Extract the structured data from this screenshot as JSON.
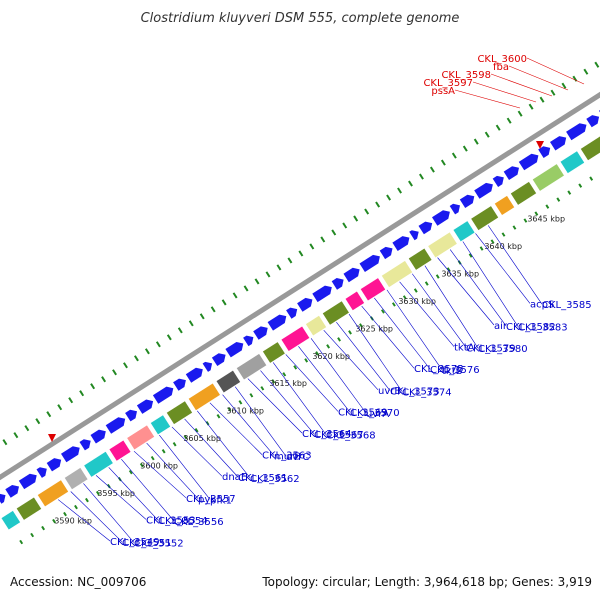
{
  "title": "Clostridium kluyveri DSM 555, complete genome",
  "footer": {
    "accession": "Accession: NC_009706",
    "summary": "Topology: circular; Length: 3,964,618 bp; Genes: 3,919"
  },
  "colors": {
    "label_blue": "#0000cc",
    "label_red": "#dd0000",
    "backbone": "#999999",
    "arrow_blue": "#1a1aee",
    "dot_green": "#228822",
    "magenta": "#ff1493",
    "cyan": "#20c8c8",
    "yellow": "#e8e89a",
    "olive": "#6b8e23",
    "orange": "#f0a020"
  },
  "ticks": [
    {
      "label": "3590 kbp"
    },
    {
      "label": "3595 kbp"
    },
    {
      "label": "3600 kbp"
    },
    {
      "label": "3605 kbp"
    },
    {
      "label": "3610 kbp"
    },
    {
      "label": "3615 kbp"
    },
    {
      "label": "3620 kbp"
    },
    {
      "label": "3625 kbp"
    },
    {
      "label": "3630 kbp"
    },
    {
      "label": "3635 kbp"
    },
    {
      "label": "3640 kbp"
    },
    {
      "label": "3645 kbp"
    }
  ],
  "gene_labels": [
    {
      "text": "CKL_3549",
      "color": "blue"
    },
    {
      "text": "CKL_3551",
      "color": "blue"
    },
    {
      "text": "CKL_3552",
      "color": "blue"
    },
    {
      "text": "CKL_3553",
      "color": "blue"
    },
    {
      "text": "CKL_3554",
      "color": "blue"
    },
    {
      "text": "CKL_3556",
      "color": "blue"
    },
    {
      "text": "CKL_3557",
      "color": "blue"
    },
    {
      "text": "pyk",
      "color": "blue"
    },
    {
      "text": "pfk1",
      "color": "blue"
    },
    {
      "text": "dnaE",
      "color": "blue"
    },
    {
      "text": "CKL_3561",
      "color": "blue"
    },
    {
      "text": "CKL_3562",
      "color": "blue"
    },
    {
      "text": "CKL_3563",
      "color": "blue"
    },
    {
      "text": "murB",
      "color": "blue"
    },
    {
      "text": "uvrC",
      "color": "blue"
    },
    {
      "text": "CKL_3564",
      "color": "blue"
    },
    {
      "text": "CKL_3567",
      "color": "blue"
    },
    {
      "text": "CKL_3568",
      "color": "blue"
    },
    {
      "text": "CKL_3569",
      "color": "blue"
    },
    {
      "text": "CKL_3570",
      "color": "blue"
    },
    {
      "text": "uvrA",
      "color": "blue"
    },
    {
      "text": "uvrB",
      "color": "blue"
    },
    {
      "text": "CKL_3573",
      "color": "blue"
    },
    {
      "text": "CKL_3574",
      "color": "blue"
    },
    {
      "text": "CKL_3575",
      "color": "blue"
    },
    {
      "text": "CKL_3576",
      "color": "blue"
    },
    {
      "text": "tktB",
      "color": "blue"
    },
    {
      "text": "tktA",
      "color": "blue"
    },
    {
      "text": "CKL_3579",
      "color": "blue"
    },
    {
      "text": "CKL_3580",
      "color": "blue"
    },
    {
      "text": "air",
      "color": "blue"
    },
    {
      "text": "CKL_3582",
      "color": "blue"
    },
    {
      "text": "CKL_3583",
      "color": "blue"
    },
    {
      "text": "acpS",
      "color": "blue"
    },
    {
      "text": "CKL_3585",
      "color": "blue"
    },
    {
      "text": "pssA",
      "color": "red"
    },
    {
      "text": "CKL_3597",
      "color": "red"
    },
    {
      "text": "CKL_3598",
      "color": "red"
    },
    {
      "text": "fba",
      "color": "red"
    },
    {
      "text": "CKL_3600",
      "color": "red"
    }
  ]
}
